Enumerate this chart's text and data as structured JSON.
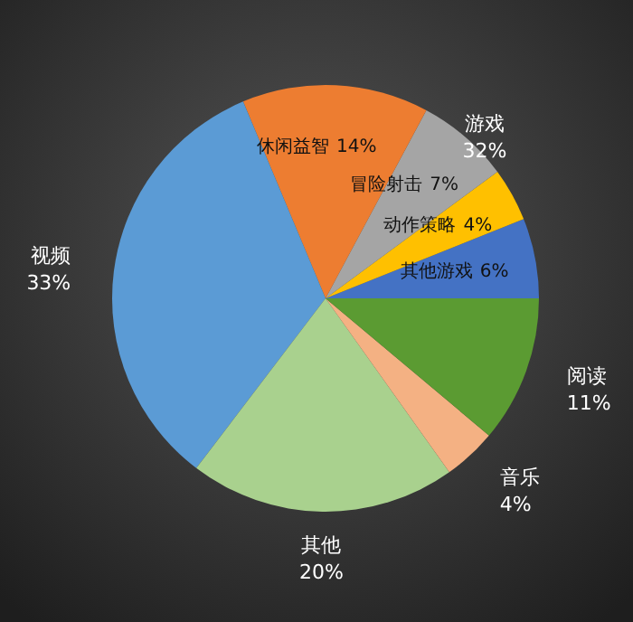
{
  "chart_data": {
    "type": "pie",
    "categories": [
      "其他游戏",
      "动作策略",
      "冒险射击",
      "休闲益智",
      "视频",
      "其他",
      "音乐",
      "阅读"
    ],
    "values": [
      6,
      4,
      7,
      14,
      33,
      20,
      4,
      11
    ],
    "value_labels": [
      "6%",
      "4%",
      "7%",
      "14%",
      "33%",
      "20%",
      "4%",
      "11%"
    ],
    "colors": [
      "#4472c4",
      "#ffc000",
      "#a5a5a5",
      "#ed7d31",
      "#5b9bd5",
      "#a9d18e",
      "#f4b183",
      "#5b9b32"
    ],
    "annotations": [
      "游戏",
      "32%"
    ]
  }
}
